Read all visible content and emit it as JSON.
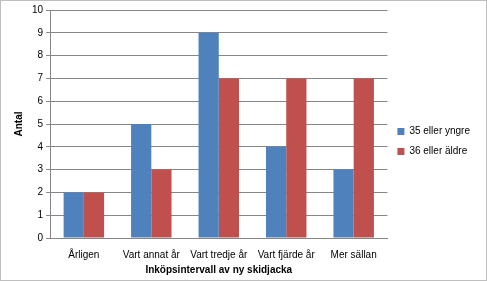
{
  "chart_data": {
    "type": "bar",
    "x_label": "Inköpsintervall av ny skidjacka",
    "y_label": "Antal",
    "categories": [
      "Årligen",
      "Vart annat år",
      "Vart tredje år",
      "Vart fjärde år",
      "Mer sällan"
    ],
    "series": [
      {
        "name": "35 eller yngre",
        "color": "#4f81bd",
        "values": [
          2,
          5,
          9,
          4,
          3
        ]
      },
      {
        "name": "36 eller äldre",
        "color": "#c0504d",
        "values": [
          2,
          3,
          7,
          7,
          7
        ]
      }
    ],
    "ylim": [
      0,
      10
    ],
    "yticks": [
      0,
      1,
      2,
      3,
      4,
      5,
      6,
      7,
      8,
      9,
      10
    ],
    "grid": true,
    "legend": "right"
  }
}
